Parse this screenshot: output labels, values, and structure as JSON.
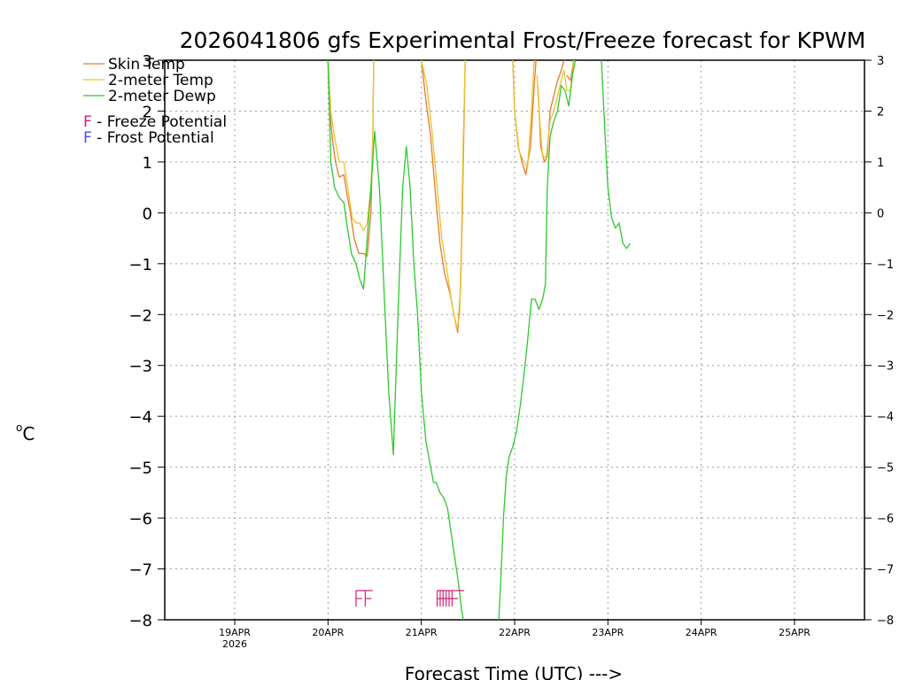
{
  "chart_data": {
    "type": "line",
    "title": "2026041806 gfs Experimental Frost/Freeze forecast for KPWM",
    "xlabel": "Forecast Time (UTC) --->",
    "ylabel": "°C",
    "ylabel_degree": "o",
    "ylabel_unit": "C",
    "ylim": [
      -8,
      3
    ],
    "yticks": [
      -8,
      -7,
      -6,
      -5,
      -4,
      -3,
      -2,
      -1,
      0,
      1,
      2,
      3
    ],
    "xlim": [
      -0.75,
      6.75
    ],
    "xticks": [
      {
        "x": 0,
        "label": "19APR",
        "sub": "2026"
      },
      {
        "x": 1,
        "label": "20APR",
        "sub": ""
      },
      {
        "x": 2,
        "label": "21APR",
        "sub": ""
      },
      {
        "x": 3,
        "label": "22APR",
        "sub": ""
      },
      {
        "x": 4,
        "label": "23APR",
        "sub": ""
      },
      {
        "x": 5,
        "label": "24APR",
        "sub": ""
      },
      {
        "x": 6,
        "label": "25APR",
        "sub": ""
      }
    ],
    "grid": true,
    "legend_position": "top-left",
    "legend": [
      {
        "label": "Skin Temp",
        "color": "#e8792d"
      },
      {
        "label": "2-meter Temp",
        "color": "#e6c42f"
      },
      {
        "label": "2-meter Dewp",
        "color": "#2ec82e"
      }
    ],
    "flag_legend": [
      {
        "symbol": "F",
        "label": " - Freeze Potential",
        "color": "#d4207c"
      },
      {
        "symbol": "F",
        "label": " - Frost Potential",
        "color": "#4d4dff"
      }
    ],
    "series": [
      {
        "name": "Skin Temp",
        "color": "#e8792d",
        "segments": [
          [
            [
              1.0,
              3.0
            ],
            [
              1.02,
              2.0
            ],
            [
              1.05,
              1.4
            ],
            [
              1.08,
              1.0
            ],
            [
              1.12,
              0.7
            ],
            [
              1.17,
              0.75
            ],
            [
              1.2,
              0.4
            ],
            [
              1.24,
              0.0
            ],
            [
              1.28,
              -0.5
            ],
            [
              1.33,
              -0.8
            ],
            [
              1.38,
              -0.8
            ],
            [
              1.42,
              -0.85
            ],
            [
              1.46,
              0.0
            ],
            [
              1.48,
              1.5
            ],
            [
              1.49,
              3.0
            ]
          ],
          [
            [
              2.0,
              3.0
            ],
            [
              2.05,
              2.2
            ],
            [
              2.1,
              1.5
            ],
            [
              2.15,
              0.4
            ],
            [
              2.2,
              -0.6
            ],
            [
              2.25,
              -1.2
            ],
            [
              2.31,
              -1.6
            ],
            [
              2.35,
              -2.0
            ],
            [
              2.39,
              -2.35
            ],
            [
              2.42,
              -1.5
            ],
            [
              2.44,
              0.0
            ],
            [
              2.46,
              2.0
            ],
            [
              2.47,
              3.0
            ]
          ],
          [
            [
              2.98,
              3.0
            ],
            [
              3.0,
              2.0
            ],
            [
              3.04,
              1.3
            ],
            [
              3.08,
              1.0
            ],
            [
              3.12,
              0.75
            ],
            [
              3.17,
              1.3
            ],
            [
              3.21,
              2.5
            ],
            [
              3.23,
              3.0
            ]
          ],
          [
            [
              3.25,
              2.5
            ],
            [
              3.28,
              1.3
            ],
            [
              3.32,
              1.0
            ],
            [
              3.35,
              1.1
            ],
            [
              3.38,
              2.0
            ],
            [
              3.42,
              2.3
            ],
            [
              3.46,
              2.6
            ],
            [
              3.5,
              2.8
            ],
            [
              3.53,
              3.0
            ]
          ],
          [
            [
              3.56,
              2.7
            ],
            [
              3.6,
              2.6
            ],
            [
              3.63,
              3.0
            ]
          ]
        ]
      },
      {
        "name": "2-meter Temp",
        "color": "#e6c42f",
        "segments": [
          [
            [
              1.0,
              3.0
            ],
            [
              1.03,
              2.0
            ],
            [
              1.07,
              1.5
            ],
            [
              1.12,
              1.0
            ],
            [
              1.17,
              1.0
            ],
            [
              1.21,
              0.5
            ],
            [
              1.26,
              -0.1
            ],
            [
              1.3,
              -0.2
            ],
            [
              1.34,
              -0.2
            ],
            [
              1.38,
              -0.35
            ],
            [
              1.42,
              -0.2
            ],
            [
              1.46,
              0.5
            ],
            [
              1.48,
              1.5
            ],
            [
              1.49,
              3.0
            ]
          ],
          [
            [
              2.0,
              3.0
            ],
            [
              2.06,
              2.5
            ],
            [
              2.12,
              1.5
            ],
            [
              2.17,
              0.5
            ],
            [
              2.22,
              -0.5
            ],
            [
              2.28,
              -1.2
            ],
            [
              2.33,
              -1.8
            ],
            [
              2.38,
              -2.3
            ],
            [
              2.41,
              -2.0
            ],
            [
              2.43,
              -0.5
            ],
            [
              2.45,
              1.5
            ],
            [
              2.47,
              3.0
            ]
          ],
          [
            [
              2.98,
              3.0
            ],
            [
              3.0,
              2.0
            ],
            [
              3.05,
              1.2
            ],
            [
              3.1,
              1.0
            ],
            [
              3.14,
              0.9
            ],
            [
              3.18,
              2.0
            ],
            [
              3.21,
              3.0
            ]
          ],
          [
            [
              3.24,
              2.7
            ],
            [
              3.27,
              1.8
            ],
            [
              3.3,
              1.1
            ],
            [
              3.34,
              1.1
            ],
            [
              3.38,
              1.8
            ],
            [
              3.42,
              2.0
            ],
            [
              3.46,
              2.3
            ],
            [
              3.5,
              2.6
            ],
            [
              3.53,
              2.8
            ],
            [
              3.56,
              2.4
            ],
            [
              3.6,
              2.4
            ],
            [
              3.63,
              3.0
            ]
          ]
        ]
      },
      {
        "name": "2-meter Dewp",
        "color": "#2ec82e",
        "segments": [
          [
            [
              1.0,
              3.0
            ],
            [
              1.03,
              1.0
            ],
            [
              1.07,
              0.5
            ],
            [
              1.12,
              0.3
            ],
            [
              1.17,
              0.2
            ],
            [
              1.2,
              -0.2
            ],
            [
              1.25,
              -0.8
            ],
            [
              1.3,
              -1.0
            ],
            [
              1.34,
              -1.3
            ],
            [
              1.38,
              -1.5
            ],
            [
              1.42,
              -0.5
            ],
            [
              1.46,
              0.5
            ],
            [
              1.5,
              1.6
            ],
            [
              1.55,
              0.5
            ],
            [
              1.6,
              -1.5
            ],
            [
              1.65,
              -3.5
            ],
            [
              1.7,
              -4.75
            ],
            [
              1.75,
              -2.0
            ],
            [
              1.8,
              0.5
            ],
            [
              1.84,
              1.3
            ],
            [
              1.88,
              0.5
            ],
            [
              1.92,
              -1.0
            ],
            [
              1.96,
              -2.0
            ],
            [
              2.0,
              -3.5
            ],
            [
              2.05,
              -4.5
            ],
            [
              2.1,
              -5.0
            ],
            [
              2.13,
              -5.3
            ],
            [
              2.16,
              -5.3
            ],
            [
              2.2,
              -5.5
            ],
            [
              2.24,
              -5.6
            ],
            [
              2.28,
              -5.8
            ],
            [
              2.32,
              -6.3
            ],
            [
              2.36,
              -6.8
            ],
            [
              2.4,
              -7.3
            ],
            [
              2.43,
              -7.8
            ],
            [
              2.45,
              -8.0
            ]
          ],
          [
            [
              2.83,
              -8.0
            ],
            [
              2.85,
              -7.3
            ],
            [
              2.88,
              -6.0
            ],
            [
              2.91,
              -5.2
            ],
            [
              2.94,
              -4.8
            ],
            [
              2.98,
              -4.6
            ],
            [
              3.02,
              -4.3
            ],
            [
              3.06,
              -3.8
            ],
            [
              3.1,
              -3.2
            ],
            [
              3.14,
              -2.5
            ],
            [
              3.18,
              -1.7
            ],
            [
              3.22,
              -1.7
            ],
            [
              3.26,
              -1.9
            ],
            [
              3.3,
              -1.7
            ],
            [
              3.33,
              -1.4
            ],
            [
              3.35,
              0.5
            ],
            [
              3.38,
              1.5
            ],
            [
              3.42,
              1.8
            ],
            [
              3.46,
              2.0
            ],
            [
              3.5,
              2.5
            ],
            [
              3.54,
              2.4
            ],
            [
              3.58,
              2.1
            ],
            [
              3.62,
              2.7
            ],
            [
              3.65,
              3.0
            ]
          ],
          [
            [
              3.93,
              3.0
            ],
            [
              3.97,
              1.5
            ],
            [
              4.0,
              0.5
            ],
            [
              4.04,
              -0.1
            ],
            [
              4.08,
              -0.3
            ],
            [
              4.12,
              -0.2
            ],
            [
              4.16,
              -0.6
            ],
            [
              4.2,
              -0.7
            ],
            [
              4.24,
              -0.6
            ]
          ]
        ]
      }
    ],
    "freeze_flags": {
      "color": "#d4207c",
      "y": -7.6,
      "groups": [
        {
          "x_start": 1.3,
          "x_end": 1.48,
          "count": 2
        },
        {
          "x_start": 2.17,
          "x_end": 2.46,
          "count": 6
        }
      ]
    }
  }
}
